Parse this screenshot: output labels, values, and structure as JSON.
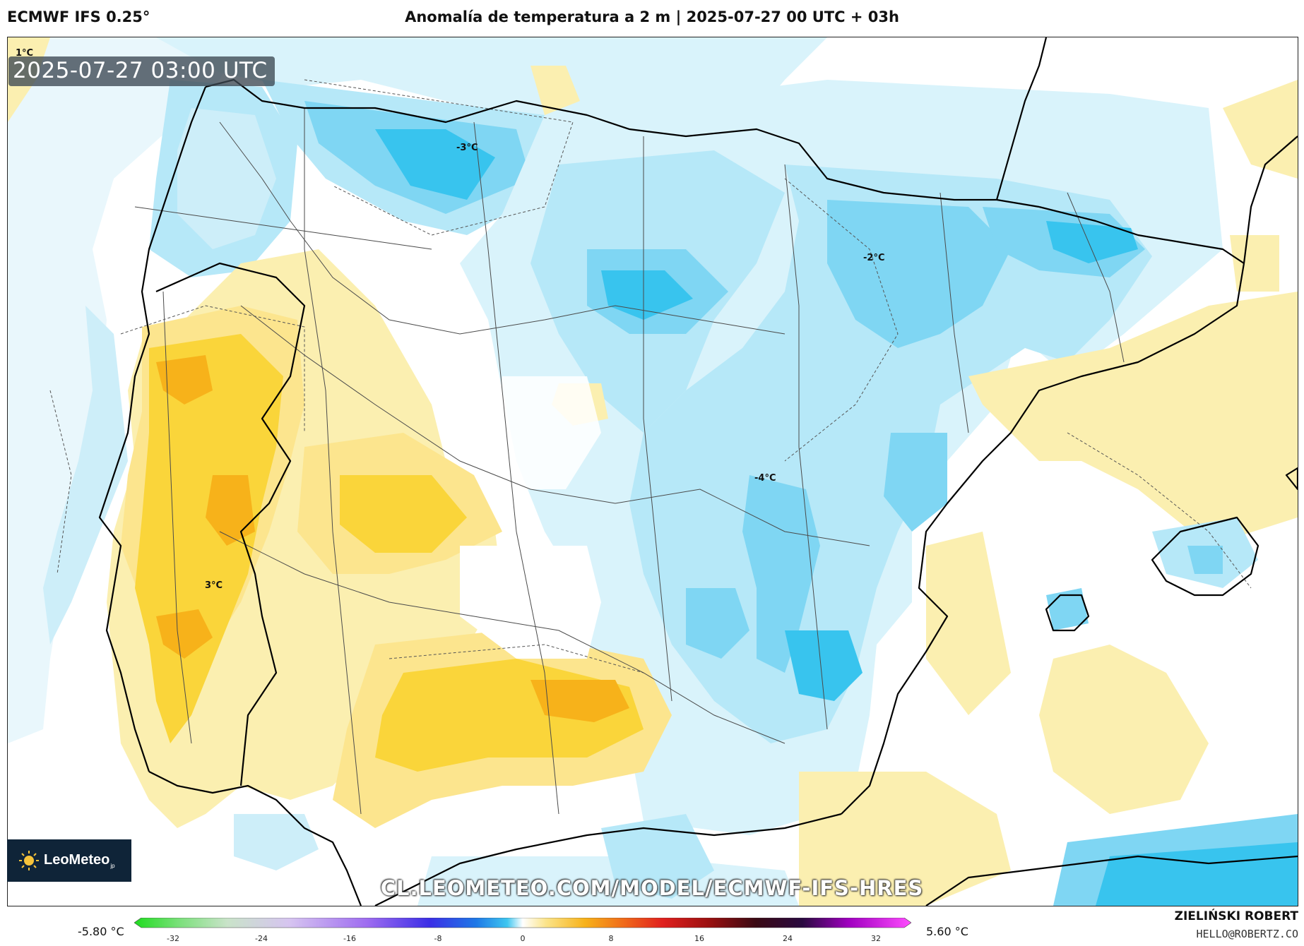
{
  "header": {
    "model": "ECMWF IFS 0.25°",
    "title": "Anomalía de temperatura a 2 m | 2025-07-27 00 UTC + 03h"
  },
  "map": {
    "timestamp": "2025-07-27 03:00 UTC",
    "contour_labels": [
      "1°C",
      "-3°C",
      "-2°C",
      "-4°C",
      "3°C"
    ],
    "region": "Iberian Peninsula and Balearic Islands",
    "colors": {
      "warm_light": "#fbefb0",
      "warm_mid": "#fce58e",
      "warm": "#fad53a",
      "warm_dark": "#f7b21a",
      "cool_light": "#d9f3fb",
      "cool_mid": "#b6e8f8",
      "cool": "#7fd6f3",
      "cool_dark": "#38c4ee"
    }
  },
  "branding": {
    "logo": "LeoMeteo",
    "logo_suffix": "jp",
    "url": "CL.LEOMETEO.COM/MODEL/ECMWF-IFS-HRES",
    "author": "ZIELIŃSKI ROBERT",
    "email": "HELLO@ROBERTZ.CO"
  },
  "legend": {
    "min_label": "-5.80 °C",
    "max_label": "5.60 °C",
    "ticks": [
      "-32",
      "-24",
      "-16",
      "-8",
      "0",
      "8",
      "16",
      "24",
      "32"
    ]
  }
}
